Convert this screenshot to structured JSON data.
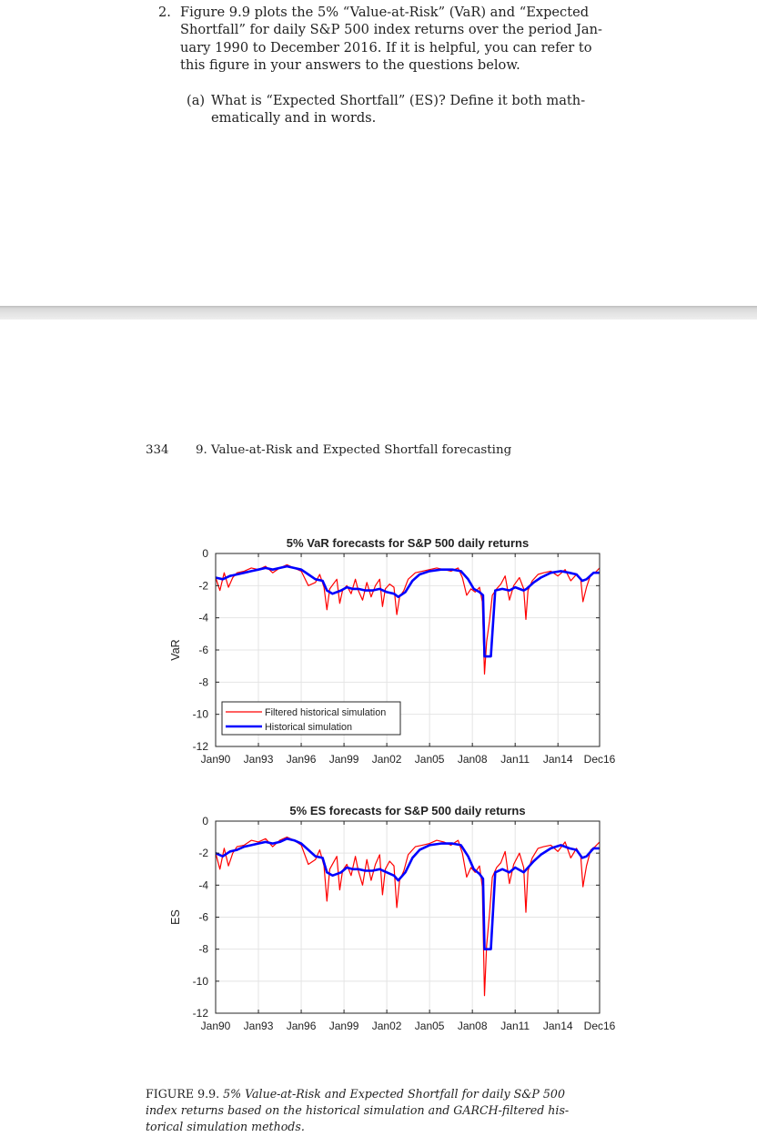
{
  "question": {
    "number": "2.",
    "lines": [
      "Figure 9.9 plots the 5% “Value-at-Risk” (VaR) and “Expected",
      "Shortfall” for daily S&P 500 index returns over the period Jan-",
      "uary 1990 to December 2016. If it is helpful, you can refer to",
      "this figure in your answers to the questions below."
    ],
    "part_a": {
      "label": "(a)",
      "lines": [
        "What is “Expected Shortfall” (ES)? Define it both math-",
        "ematically and in words."
      ]
    }
  },
  "book_page": {
    "page_number": "334",
    "running_head": "9.  Value-at-Risk and Expected Shortfall forecasting"
  },
  "series_colors": {
    "filtered": "#ff0000",
    "historical": "#0000ff"
  },
  "chart_data": [
    {
      "type": "line",
      "title": "5% VaR forecasts for S&P 500 daily returns",
      "ylabel": "VaR",
      "xlabel": "",
      "ylim": [
        -12,
        0
      ],
      "yticks": [
        0,
        -2,
        -4,
        -6,
        -8,
        -10,
        -12
      ],
      "ytick_labels": [
        "0",
        "-2",
        "-4",
        "-6",
        "-8",
        "-10",
        "-12"
      ],
      "xlim": [
        1990.0,
        2016.92
      ],
      "xticks": [
        1990.0,
        1993.0,
        1996.0,
        1999.0,
        2002.0,
        2005.0,
        2008.0,
        2011.0,
        2014.0,
        2016.92
      ],
      "xtick_labels": [
        "Jan90",
        "Jan93",
        "Jan96",
        "Jan99",
        "Jan02",
        "Jan05",
        "Jan08",
        "Jan11",
        "Jan14",
        "Dec16"
      ],
      "grid": true,
      "legend_position": "lower-left",
      "series": [
        {
          "name": "Filtered historical simulation",
          "x": [
            1990.0,
            1990.3,
            1990.6,
            1990.9,
            1991.2,
            1991.5,
            1992.0,
            1992.5,
            1993.0,
            1993.5,
            1994.0,
            1994.5,
            1995.0,
            1995.5,
            1996.0,
            1996.5,
            1997.0,
            1997.3,
            1997.6,
            1997.8,
            1998.0,
            1998.5,
            1998.7,
            1998.9,
            1999.2,
            1999.5,
            1999.8,
            2000.0,
            2000.3,
            2000.6,
            2000.9,
            2001.2,
            2001.5,
            2001.7,
            2001.9,
            2002.2,
            2002.5,
            2002.7,
            2002.9,
            2003.2,
            2003.5,
            2004.0,
            2004.5,
            2005.0,
            2005.5,
            2006.0,
            2006.5,
            2007.0,
            2007.3,
            2007.6,
            2007.9,
            2008.2,
            2008.5,
            2008.7,
            2008.85,
            2009.0,
            2009.2,
            2009.4,
            2009.7,
            2010.0,
            2010.3,
            2010.6,
            2010.9,
            2011.3,
            2011.6,
            2011.75,
            2011.9,
            2012.2,
            2012.6,
            2013.0,
            2013.5,
            2014.0,
            2014.5,
            2014.9,
            2015.3,
            2015.6,
            2015.75,
            2016.0,
            2016.3,
            2016.6,
            2016.92
          ],
          "values": [
            -1.5,
            -2.3,
            -1.2,
            -2.1,
            -1.5,
            -1.2,
            -1.1,
            -0.9,
            -1.0,
            -0.8,
            -1.2,
            -0.9,
            -0.7,
            -0.9,
            -1.1,
            -2.0,
            -1.8,
            -1.3,
            -2.1,
            -3.5,
            -2.2,
            -1.6,
            -3.1,
            -2.3,
            -2.0,
            -2.5,
            -1.6,
            -2.3,
            -2.9,
            -1.8,
            -2.7,
            -2.0,
            -1.6,
            -3.3,
            -2.2,
            -1.9,
            -2.1,
            -3.8,
            -2.7,
            -2.3,
            -1.6,
            -1.2,
            -1.1,
            -1.0,
            -0.9,
            -1.0,
            -1.1,
            -0.9,
            -1.5,
            -2.6,
            -2.2,
            -2.4,
            -2.1,
            -3.0,
            -7.5,
            -5.5,
            -4.2,
            -2.6,
            -2.2,
            -1.9,
            -1.4,
            -2.9,
            -2.0,
            -1.5,
            -2.2,
            -4.1,
            -2.3,
            -1.7,
            -1.3,
            -1.2,
            -1.1,
            -1.4,
            -1.0,
            -1.7,
            -1.3,
            -1.6,
            -3.0,
            -2.1,
            -1.3,
            -1.2,
            -0.9
          ]
        },
        {
          "name": "Historical simulation",
          "x": [
            1990.0,
            1990.5,
            1991.0,
            1991.5,
            1992.0,
            1992.5,
            1993.0,
            1993.5,
            1994.0,
            1994.5,
            1995.0,
            1995.5,
            1996.0,
            1996.5,
            1997.0,
            1997.5,
            1997.8,
            1998.2,
            1998.8,
            1999.2,
            1999.6,
            2000.0,
            2000.5,
            2001.0,
            2001.5,
            2002.0,
            2002.5,
            2002.8,
            2003.3,
            2003.8,
            2004.3,
            2005.0,
            2005.8,
            2006.6,
            2007.2,
            2007.7,
            2008.1,
            2008.5,
            2008.75,
            2008.85,
            2009.3,
            2009.6,
            2010.1,
            2010.6,
            2011.0,
            2011.6,
            2011.8,
            2012.3,
            2012.8,
            2013.5,
            2014.2,
            2014.8,
            2015.3,
            2015.7,
            2016.0,
            2016.5,
            2016.92
          ],
          "values": [
            -1.5,
            -1.6,
            -1.4,
            -1.3,
            -1.2,
            -1.1,
            -1.0,
            -0.9,
            -1.0,
            -0.9,
            -0.8,
            -0.9,
            -1.0,
            -1.3,
            -1.6,
            -1.7,
            -2.3,
            -2.5,
            -2.3,
            -2.1,
            -2.2,
            -2.2,
            -2.3,
            -2.3,
            -2.2,
            -2.4,
            -2.5,
            -2.7,
            -2.4,
            -1.7,
            -1.3,
            -1.1,
            -1.0,
            -1.0,
            -1.1,
            -1.6,
            -2.2,
            -2.4,
            -2.6,
            -6.4,
            -6.4,
            -2.3,
            -2.2,
            -2.3,
            -2.1,
            -2.3,
            -2.2,
            -1.8,
            -1.5,
            -1.2,
            -1.1,
            -1.2,
            -1.3,
            -1.7,
            -1.6,
            -1.2,
            -1.2
          ]
        }
      ]
    },
    {
      "type": "line",
      "title": "5% ES forecasts for S&P 500 daily returns",
      "ylabel": "ES",
      "xlabel": "",
      "ylim": [
        -12,
        0
      ],
      "yticks": [
        0,
        -2,
        -4,
        -6,
        -8,
        -10,
        -12
      ],
      "ytick_labels": [
        "0",
        "-2",
        "-4",
        "-6",
        "-8",
        "-10",
        "-12"
      ],
      "xlim": [
        1990.0,
        2016.92
      ],
      "xticks": [
        1990.0,
        1993.0,
        1996.0,
        1999.0,
        2002.0,
        2005.0,
        2008.0,
        2011.0,
        2014.0,
        2016.92
      ],
      "xtick_labels": [
        "Jan90",
        "Jan93",
        "Jan96",
        "Jan99",
        "Jan02",
        "Jan05",
        "Jan08",
        "Jan11",
        "Jan14",
        "Dec16"
      ],
      "grid": true,
      "series": [
        {
          "name": "Filtered historical simulation",
          "x": [
            1990.0,
            1990.3,
            1990.6,
            1990.9,
            1991.2,
            1991.5,
            1992.0,
            1992.5,
            1993.0,
            1993.5,
            1994.0,
            1994.5,
            1995.0,
            1995.5,
            1996.0,
            1996.5,
            1997.0,
            1997.3,
            1997.6,
            1997.8,
            1998.0,
            1998.5,
            1998.7,
            1998.9,
            1999.2,
            1999.5,
            1999.8,
            2000.0,
            2000.3,
            2000.6,
            2000.9,
            2001.2,
            2001.5,
            2001.7,
            2001.9,
            2002.2,
            2002.5,
            2002.7,
            2002.9,
            2003.2,
            2003.5,
            2004.0,
            2004.5,
            2005.0,
            2005.5,
            2006.0,
            2006.5,
            2007.0,
            2007.3,
            2007.6,
            2007.9,
            2008.2,
            2008.5,
            2008.7,
            2008.85,
            2009.0,
            2009.2,
            2009.4,
            2009.7,
            2010.0,
            2010.3,
            2010.6,
            2010.9,
            2011.3,
            2011.6,
            2011.75,
            2011.9,
            2012.2,
            2012.6,
            2013.0,
            2013.5,
            2014.0,
            2014.5,
            2014.9,
            2015.3,
            2015.6,
            2015.75,
            2016.0,
            2016.3,
            2016.6,
            2016.92
          ],
          "values": [
            -2.0,
            -3.0,
            -1.7,
            -2.8,
            -2.0,
            -1.6,
            -1.5,
            -1.2,
            -1.3,
            -1.1,
            -1.6,
            -1.2,
            -1.0,
            -1.2,
            -1.5,
            -2.7,
            -2.4,
            -1.8,
            -2.8,
            -5.0,
            -3.0,
            -2.2,
            -4.3,
            -3.1,
            -2.7,
            -3.4,
            -2.2,
            -3.1,
            -4.0,
            -2.4,
            -3.7,
            -2.7,
            -2.1,
            -4.6,
            -3.0,
            -2.5,
            -2.8,
            -5.4,
            -3.7,
            -3.1,
            -2.1,
            -1.6,
            -1.5,
            -1.4,
            -1.2,
            -1.3,
            -1.5,
            -1.2,
            -2.0,
            -3.5,
            -2.9,
            -3.2,
            -2.8,
            -4.1,
            -10.9,
            -7.8,
            -5.8,
            -3.5,
            -2.9,
            -2.6,
            -1.9,
            -3.9,
            -2.7,
            -2.0,
            -2.9,
            -5.7,
            -3.1,
            -2.3,
            -1.7,
            -1.6,
            -1.5,
            -1.9,
            -1.3,
            -2.3,
            -1.7,
            -2.2,
            -4.1,
            -2.8,
            -1.8,
            -1.6,
            -1.3
          ]
        },
        {
          "name": "Historical simulation",
          "x": [
            1990.0,
            1990.5,
            1991.0,
            1991.5,
            1992.0,
            1992.5,
            1993.0,
            1993.5,
            1994.0,
            1994.5,
            1995.0,
            1995.5,
            1996.0,
            1996.5,
            1997.0,
            1997.5,
            1997.8,
            1998.2,
            1998.8,
            1999.2,
            1999.6,
            2000.0,
            2000.5,
            2001.0,
            2001.5,
            2002.0,
            2002.5,
            2002.8,
            2003.3,
            2003.8,
            2004.3,
            2005.0,
            2005.8,
            2006.6,
            2007.2,
            2007.7,
            2008.1,
            2008.5,
            2008.75,
            2008.85,
            2009.3,
            2009.6,
            2010.1,
            2010.6,
            2011.0,
            2011.6,
            2011.8,
            2012.3,
            2012.8,
            2013.5,
            2014.2,
            2014.8,
            2015.3,
            2015.7,
            2016.0,
            2016.5,
            2016.92
          ],
          "values": [
            -2.0,
            -2.2,
            -1.9,
            -1.8,
            -1.6,
            -1.5,
            -1.4,
            -1.3,
            -1.4,
            -1.3,
            -1.1,
            -1.2,
            -1.4,
            -1.8,
            -2.2,
            -2.3,
            -3.2,
            -3.4,
            -3.2,
            -2.9,
            -3.0,
            -3.0,
            -3.1,
            -3.1,
            -3.0,
            -3.2,
            -3.4,
            -3.7,
            -3.2,
            -2.3,
            -1.8,
            -1.5,
            -1.4,
            -1.4,
            -1.5,
            -2.2,
            -3.0,
            -3.3,
            -3.6,
            -8.0,
            -8.0,
            -3.2,
            -3.0,
            -3.2,
            -2.9,
            -3.2,
            -3.0,
            -2.5,
            -2.1,
            -1.7,
            -1.5,
            -1.7,
            -1.8,
            -2.3,
            -2.2,
            -1.7,
            -1.7
          ]
        }
      ]
    }
  ],
  "caption": {
    "label": "FIGURE 9.9.",
    "lines": [
      "5% Value-at-Risk and Expected Shortfall for daily S&P 500",
      "index returns based on the historical simulation and GARCH-filtered his-",
      "torical simulation methods."
    ]
  }
}
